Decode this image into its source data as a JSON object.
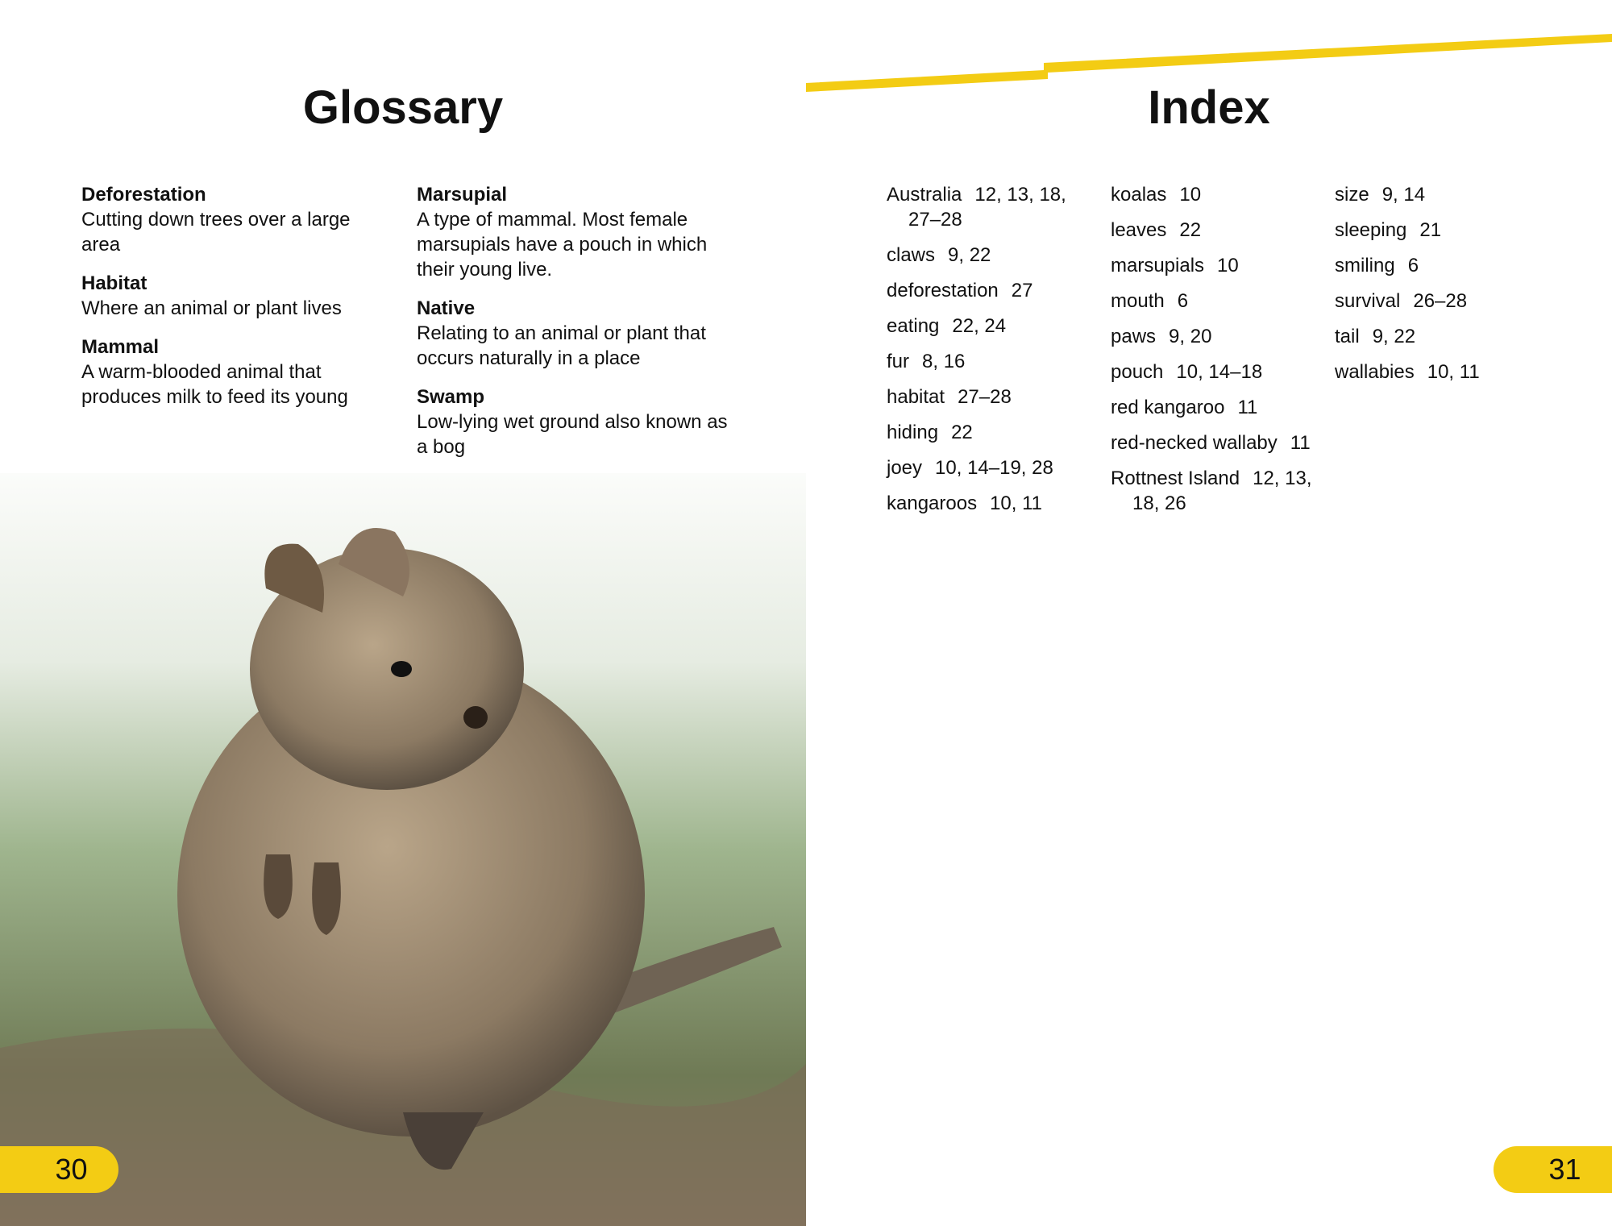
{
  "glossary": {
    "title": "Glossary",
    "columns": [
      [
        {
          "term": "Deforestation",
          "definition": "Cutting down trees over a large area"
        },
        {
          "term": "Habitat",
          "definition": "Where an animal or plant lives"
        },
        {
          "term": "Mammal",
          "definition": "A warm-blooded animal that produces milk to feed its young"
        }
      ],
      [
        {
          "term": "Marsupial",
          "definition": "A type of mammal. Most female marsupials have a pouch in which their young live."
        },
        {
          "term": "Native",
          "definition": "Relating to an animal or plant that occurs naturally in a place"
        },
        {
          "term": "Swamp",
          "definition": "Low-lying wet ground also known as a bog"
        }
      ]
    ]
  },
  "index": {
    "title": "Index",
    "columns": [
      [
        {
          "term": "Australia",
          "pages": "12, 13, 18, 27–28"
        },
        {
          "term": "claws",
          "pages": "9, 22"
        },
        {
          "term": "deforestation",
          "pages": "27"
        },
        {
          "term": "eating",
          "pages": "22, 24"
        },
        {
          "term": "fur",
          "pages": "8, 16"
        },
        {
          "term": "habitat",
          "pages": "27–28"
        },
        {
          "term": "hiding",
          "pages": "22"
        },
        {
          "term": "joey",
          "pages": "10, 14–19, 28"
        },
        {
          "term": "kangaroos",
          "pages": "10, 11"
        }
      ],
      [
        {
          "term": "koalas",
          "pages": "10"
        },
        {
          "term": "leaves",
          "pages": "22"
        },
        {
          "term": "marsupials",
          "pages": "10"
        },
        {
          "term": "mouth",
          "pages": "6"
        },
        {
          "term": "paws",
          "pages": "9, 20"
        },
        {
          "term": "pouch",
          "pages": "10, 14–18"
        },
        {
          "term": "red kangaroo",
          "pages": "11"
        },
        {
          "term": "red-necked wallaby",
          "pages": "11"
        },
        {
          "term": "Rottnest Island",
          "pages": "12, 13, 18, 26"
        }
      ],
      [
        {
          "term": "size",
          "pages": "9, 14"
        },
        {
          "term": "sleeping",
          "pages": "21"
        },
        {
          "term": "smiling",
          "pages": "6"
        },
        {
          "term": "survival",
          "pages": "26–28"
        },
        {
          "term": "tail",
          "pages": "9, 22"
        },
        {
          "term": "wallabies",
          "pages": "10, 11"
        }
      ]
    ]
  },
  "page_numbers": {
    "left": "30",
    "right": "31"
  }
}
